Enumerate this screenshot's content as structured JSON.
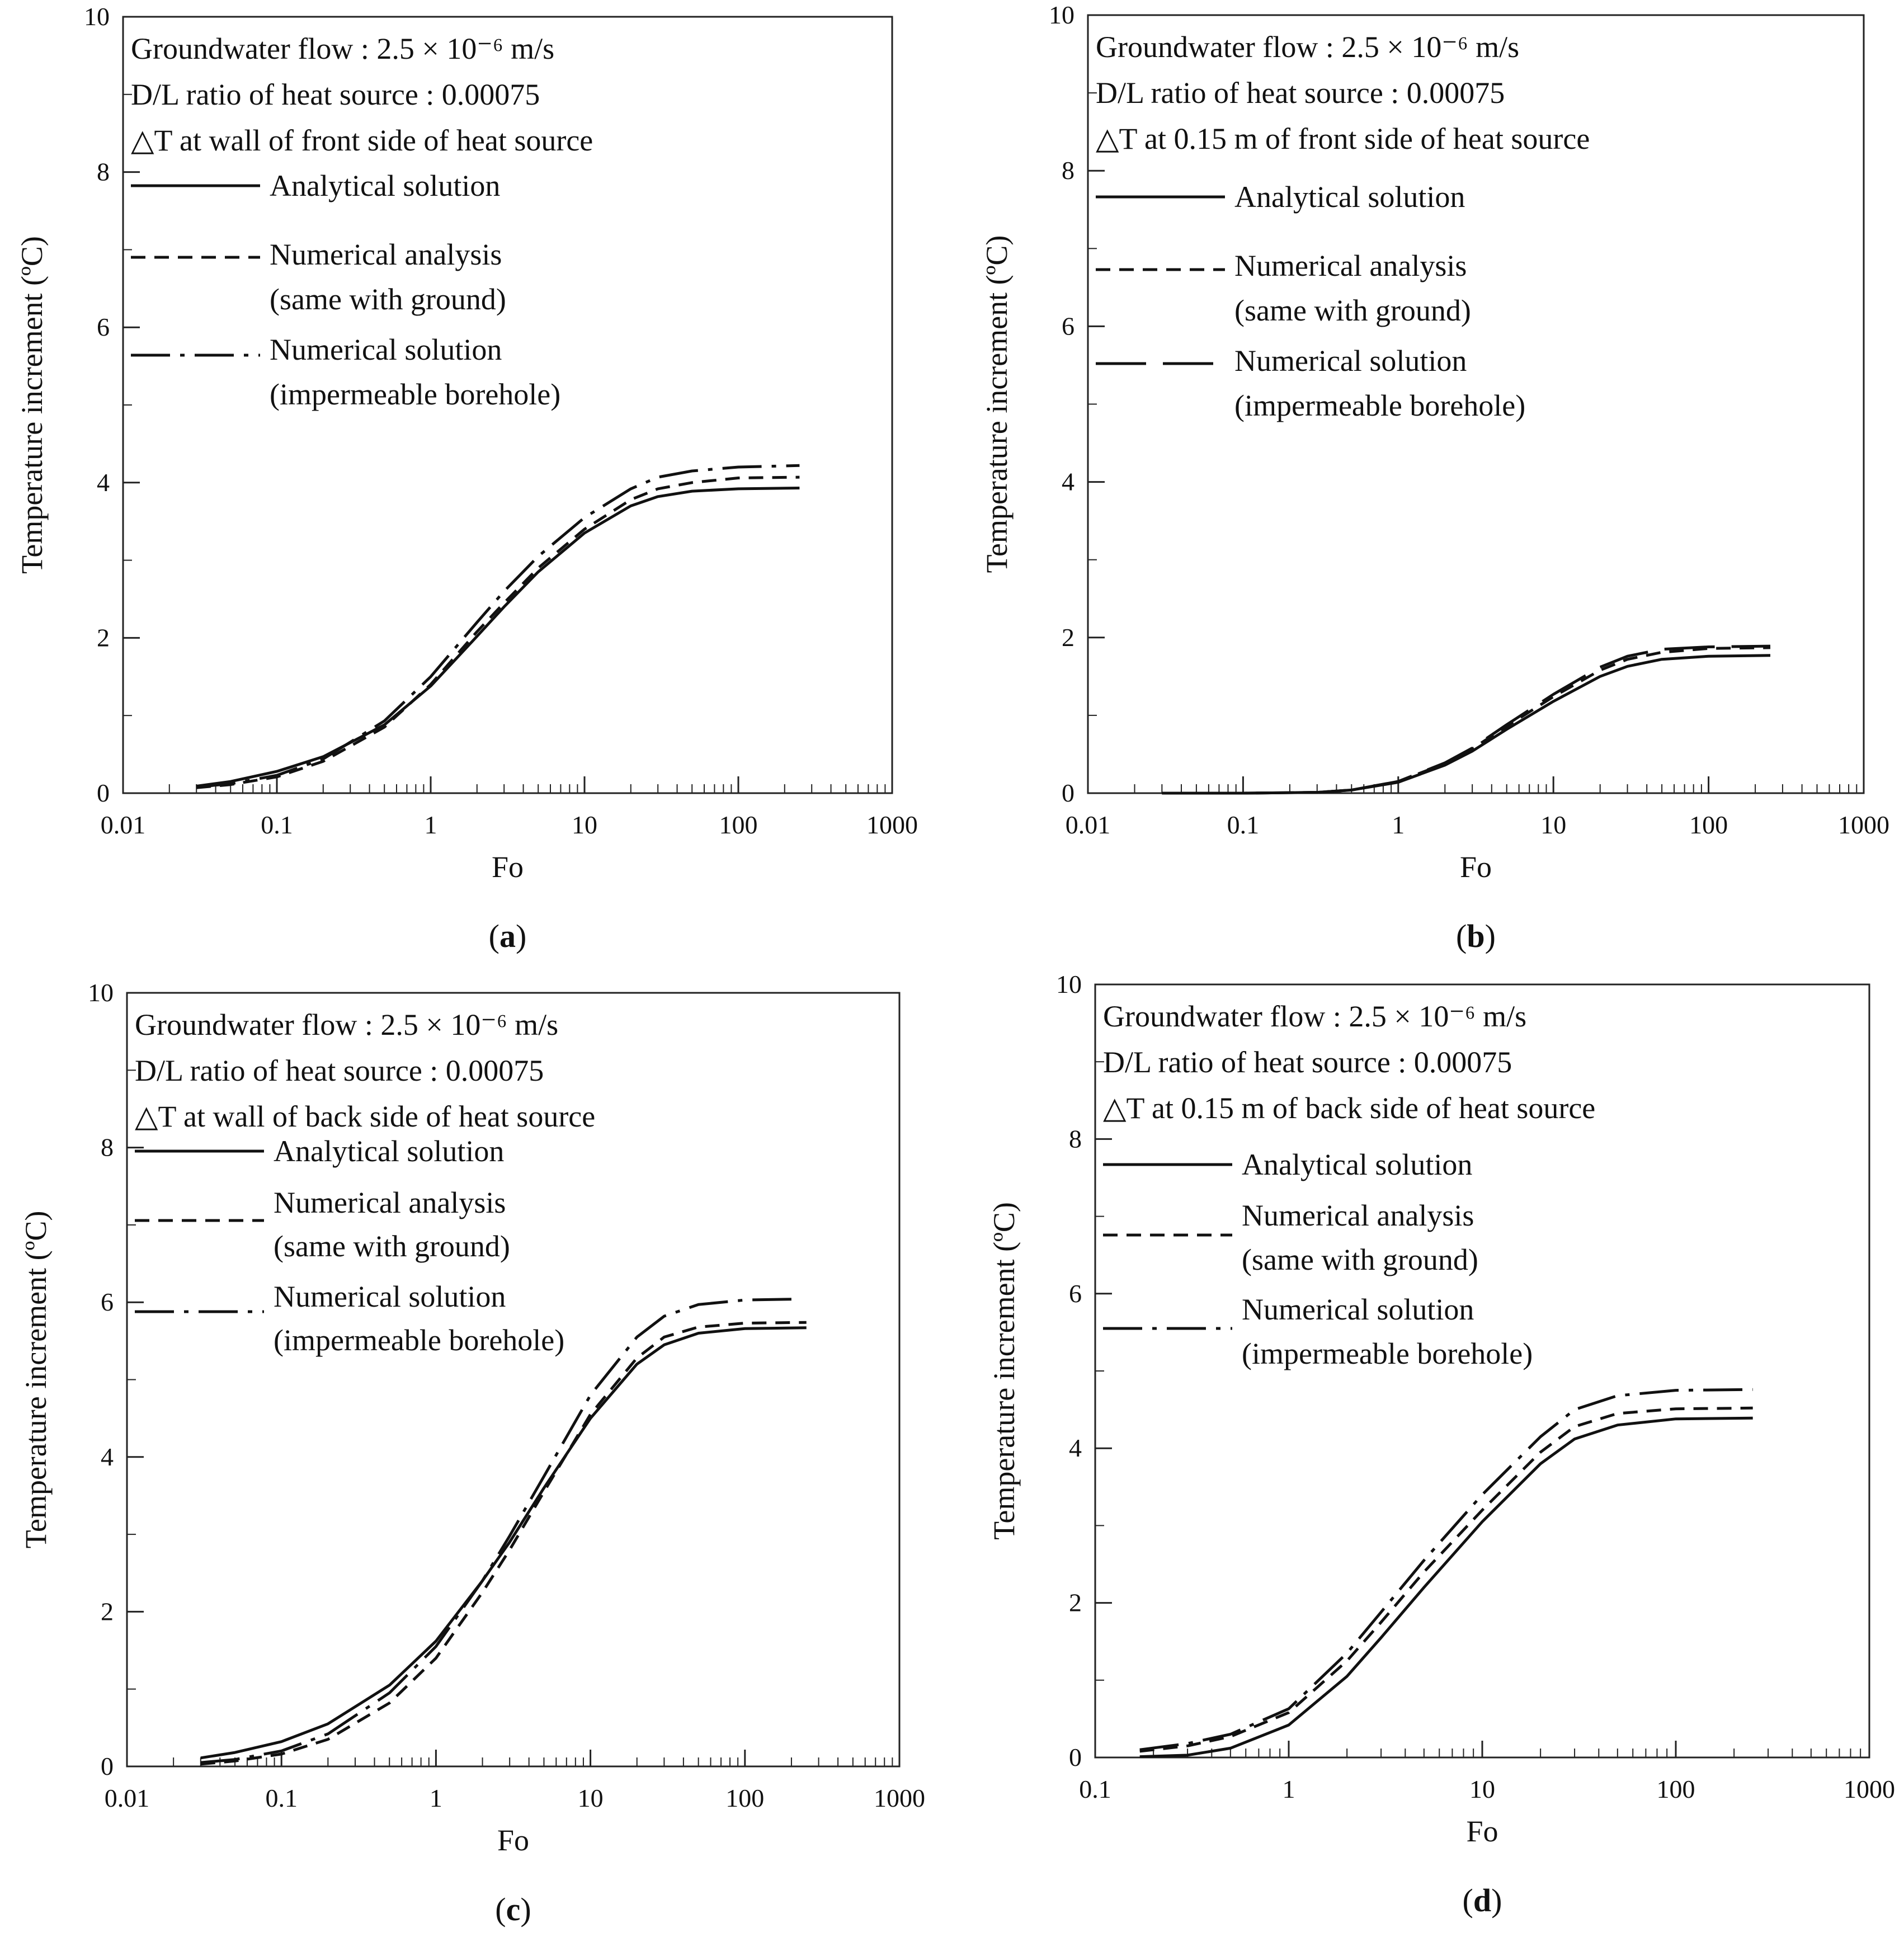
{
  "chart_data": [
    {
      "type": "line",
      "panel_label": "a",
      "xlabel": "Fo",
      "ylabel": "Temperature increment (ºC)",
      "xscale": "log",
      "xlim": [
        0.01,
        1000
      ],
      "ylim": [
        0,
        10
      ],
      "x_ticks": [
        "0.01",
        "0.1",
        "1",
        "10",
        "100",
        "1000"
      ],
      "y_ticks": [
        "0",
        "2",
        "4",
        "6",
        "8",
        "10"
      ],
      "annotations": [
        "Groundwater flow : 2.5 × 10⁻⁶ m/s",
        "D/L ratio of heat source : 0.00075",
        "△T at wall of front side of heat source"
      ],
      "legend_placement": "top-left",
      "series": [
        {
          "name": "Analytical solution",
          "style": "solid",
          "x": [
            0.03,
            0.05,
            0.1,
            0.2,
            0.5,
            1,
            2,
            3,
            5,
            10,
            20,
            30,
            50,
            100,
            250
          ],
          "y": [
            0.09,
            0.15,
            0.28,
            0.47,
            0.88,
            1.38,
            2.02,
            2.4,
            2.85,
            3.35,
            3.7,
            3.82,
            3.89,
            3.92,
            3.93
          ]
        },
        {
          "name": "Numerical analysis (same with ground)",
          "style": "dashed",
          "x": [
            0.03,
            0.05,
            0.1,
            0.2,
            0.5,
            1,
            2,
            3,
            5,
            10,
            20,
            30,
            50,
            100,
            250
          ],
          "y": [
            0.07,
            0.11,
            0.21,
            0.41,
            0.85,
            1.4,
            2.08,
            2.45,
            2.9,
            3.4,
            3.78,
            3.92,
            4.0,
            4.06,
            4.07
          ]
        },
        {
          "name": "Numerical solution (impermeable borehole)",
          "style": "dashdot",
          "x": [
            0.03,
            0.05,
            0.1,
            0.2,
            0.5,
            1,
            2,
            3,
            5,
            10,
            20,
            30,
            50,
            100,
            250
          ],
          "y": [
            0.08,
            0.12,
            0.23,
            0.44,
            0.93,
            1.5,
            2.2,
            2.6,
            3.05,
            3.55,
            3.92,
            4.07,
            4.15,
            4.2,
            4.22
          ]
        }
      ]
    },
    {
      "type": "line",
      "panel_label": "b",
      "xlabel": "Fo",
      "ylabel": "Temperature increment (ºC)",
      "xscale": "log",
      "xlim": [
        0.01,
        1000
      ],
      "ylim": [
        0,
        10
      ],
      "x_ticks": [
        "0.01",
        "0.1",
        "1",
        "10",
        "100",
        "1000"
      ],
      "y_ticks": [
        "0",
        "2",
        "4",
        "6",
        "8",
        "10"
      ],
      "annotations": [
        "Groundwater flow : 2.5 × 10⁻⁶ m/s",
        "D/L ratio of heat source : 0.00075",
        "△T at 0.15 m of front side of heat source"
      ],
      "legend_placement": "top-left",
      "series": [
        {
          "name": "Analytical solution",
          "style": "solid",
          "x": [
            0.03,
            0.1,
            0.3,
            0.5,
            1,
            2,
            3,
            5,
            10,
            20,
            30,
            50,
            100,
            250
          ],
          "y": [
            0,
            0,
            0.01,
            0.04,
            0.14,
            0.36,
            0.54,
            0.82,
            1.18,
            1.5,
            1.63,
            1.72,
            1.76,
            1.77
          ]
        },
        {
          "name": "Numerical analysis (same with ground)",
          "style": "dashed",
          "x": [
            0.03,
            0.1,
            0.3,
            0.5,
            1,
            2,
            3,
            5,
            10,
            20,
            30,
            50,
            100,
            250
          ],
          "y": [
            0,
            0,
            0.01,
            0.04,
            0.15,
            0.38,
            0.57,
            0.86,
            1.24,
            1.58,
            1.72,
            1.81,
            1.86,
            1.87
          ]
        },
        {
          "name": "Numerical solution (impermeable borehole)",
          "style": "longdash",
          "x": [
            0.03,
            0.1,
            0.3,
            0.5,
            1,
            2,
            3,
            5,
            10,
            20,
            30,
            50,
            100,
            250
          ],
          "y": [
            0,
            0,
            0.01,
            0.04,
            0.15,
            0.39,
            0.58,
            0.88,
            1.27,
            1.62,
            1.76,
            1.85,
            1.88,
            1.89
          ]
        }
      ]
    },
    {
      "type": "line",
      "panel_label": "c",
      "xlabel": "Fo",
      "ylabel": "Temperature increment (ºC)",
      "xscale": "log",
      "xlim": [
        0.01,
        1000
      ],
      "ylim": [
        0,
        10
      ],
      "x_ticks": [
        "0.01",
        "0.1",
        "1",
        "10",
        "100",
        "1000"
      ],
      "y_ticks": [
        "0",
        "2",
        "4",
        "6",
        "8",
        "10"
      ],
      "annotations": [
        "Groundwater flow : 2.5 × 10⁻⁶ m/s",
        "D/L ratio of heat source : 0.00075",
        "△T at wall of back side of heat source"
      ],
      "legend_placement": "top-left",
      "series": [
        {
          "name": "Analytical solution",
          "style": "solid",
          "x": [
            0.03,
            0.05,
            0.1,
            0.2,
            0.5,
            1,
            2,
            3,
            5,
            10,
            20,
            30,
            50,
            100,
            250
          ],
          "y": [
            0.11,
            0.18,
            0.32,
            0.55,
            1.05,
            1.62,
            2.4,
            2.9,
            3.6,
            4.5,
            5.2,
            5.45,
            5.6,
            5.66,
            5.67
          ]
        },
        {
          "name": "Numerical analysis (same with ground)",
          "style": "dashed",
          "x": [
            0.03,
            0.05,
            0.1,
            0.2,
            0.5,
            1,
            2,
            3,
            5,
            10,
            20,
            30,
            50,
            100,
            250
          ],
          "y": [
            0.03,
            0.07,
            0.16,
            0.35,
            0.82,
            1.4,
            2.25,
            2.8,
            3.55,
            4.55,
            5.28,
            5.55,
            5.68,
            5.73,
            5.74
          ]
        },
        {
          "name": "Numerical solution (impermeable borehole)",
          "style": "dashdot",
          "x": [
            0.03,
            0.05,
            0.1,
            0.2,
            0.5,
            1,
            2,
            3,
            5,
            10,
            20,
            30,
            50,
            100,
            200
          ],
          "y": [
            0.05,
            0.09,
            0.2,
            0.42,
            0.95,
            1.55,
            2.4,
            2.98,
            3.75,
            4.8,
            5.55,
            5.82,
            5.97,
            6.03,
            6.04
          ]
        }
      ]
    },
    {
      "type": "line",
      "panel_label": "d",
      "xlabel": "Fo",
      "ylabel": "Temperature increment (ºC)",
      "xscale": "log",
      "xlim": [
        0.1,
        1000
      ],
      "ylim": [
        0,
        10
      ],
      "x_ticks": [
        "0.1",
        "1",
        "10",
        "100",
        "1000"
      ],
      "y_ticks": [
        "0",
        "2",
        "4",
        "6",
        "8",
        "10"
      ],
      "annotations": [
        "Groundwater flow : 2.5 × 10⁻⁶ m/s",
        "D/L ratio of heat source : 0.00075",
        "△T at 0.15 m of back side of heat source"
      ],
      "legend_placement": "top-left",
      "series": [
        {
          "name": "Analytical solution",
          "style": "solid",
          "x": [
            0.17,
            0.3,
            0.5,
            1,
            2,
            3,
            5,
            10,
            20,
            30,
            50,
            100,
            250
          ],
          "y": [
            0.01,
            0.03,
            0.12,
            0.42,
            1.05,
            1.55,
            2.2,
            3.05,
            3.8,
            4.12,
            4.3,
            4.38,
            4.39
          ]
        },
        {
          "name": "Numerical analysis (same with ground)",
          "style": "dashed",
          "x": [
            0.17,
            0.3,
            0.5,
            1,
            2,
            3,
            5,
            10,
            20,
            30,
            50,
            100,
            250
          ],
          "y": [
            0.08,
            0.15,
            0.27,
            0.58,
            1.25,
            1.75,
            2.4,
            3.2,
            3.95,
            4.28,
            4.45,
            4.51,
            4.52
          ]
        },
        {
          "name": "Numerical solution (impermeable borehole)",
          "style": "dashdot",
          "x": [
            0.17,
            0.3,
            0.5,
            1,
            2,
            3,
            5,
            10,
            20,
            30,
            50,
            100,
            250
          ],
          "y": [
            0.1,
            0.18,
            0.3,
            0.63,
            1.35,
            1.88,
            2.55,
            3.4,
            4.15,
            4.5,
            4.68,
            4.75,
            4.76
          ]
        }
      ]
    }
  ],
  "panels": [
    {
      "label": "a",
      "legend": [
        "Analytical solution",
        "Numerical analysis",
        "(same with ground)",
        "Numerical solution",
        "(impermeable borehole)"
      ]
    },
    {
      "label": "b",
      "legend": [
        "Analytical solution",
        "Numerical analysis",
        "(same with ground)",
        "Numerical solution",
        "(impermeable borehole)"
      ]
    },
    {
      "label": "c",
      "legend": [
        "Analytical solution",
        "Numerical analysis",
        "(same with ground)",
        "Numerical solution",
        "(impermeable borehole)"
      ]
    },
    {
      "label": "d",
      "legend": [
        "Analytical solution",
        "Numerical analysis",
        "(same with ground)",
        "Numerical solution",
        "(impermeable borehole)"
      ]
    }
  ]
}
